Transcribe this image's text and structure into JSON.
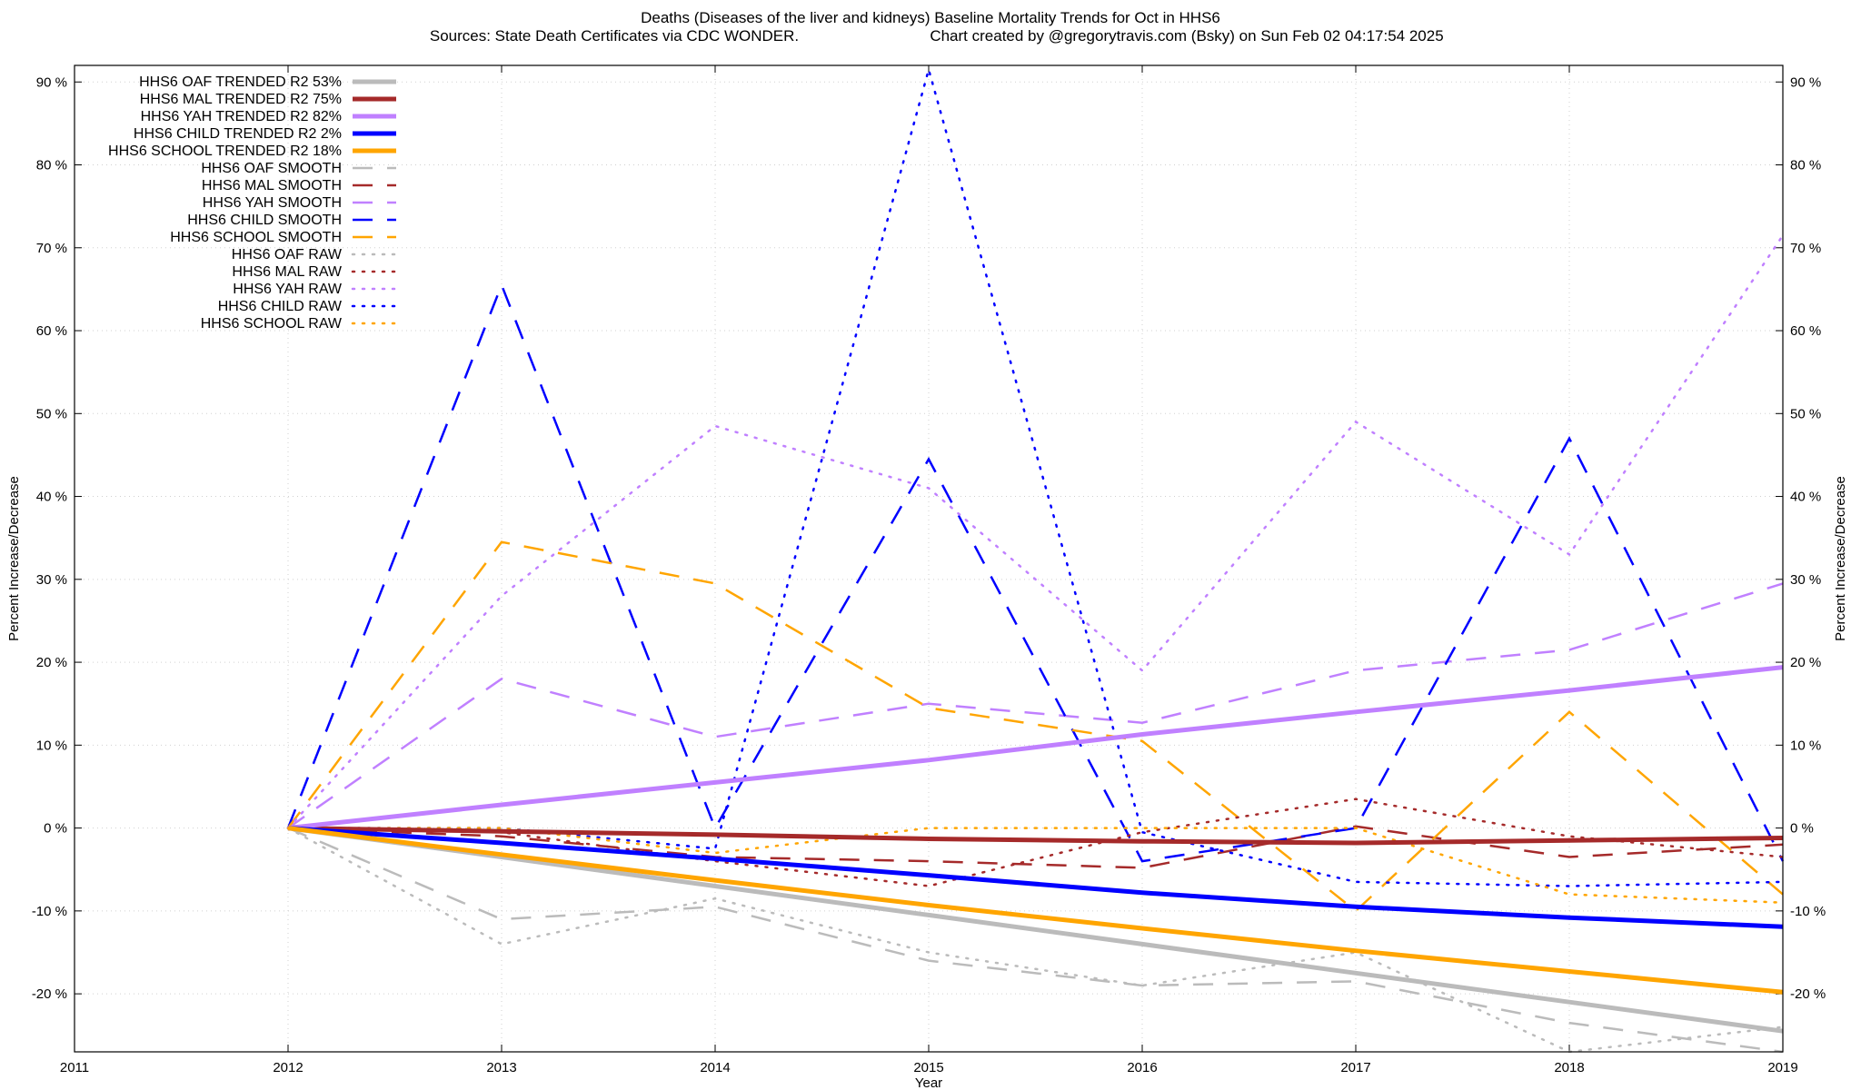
{
  "chart_data": {
    "type": "line",
    "title": "Deaths (Diseases of the liver and kidneys)  Baseline Mortality Trends for Oct in HHS6",
    "subtitle_left": "Sources: State Death Certificates via CDC WONDER.",
    "subtitle_right": "Chart created by @gregorytravis.com (Bsky) on Sun Feb 02 04:17:54 2025",
    "xlabel": "Year",
    "ylabel_left": "Percent Increase/Decrease",
    "ylabel_right": "Percent Increase/Decrease",
    "xlim": [
      2011,
      2019
    ],
    "ylim": [
      -27,
      92
    ],
    "x_ticks": [
      "2011",
      "2012",
      "2013",
      "2014",
      "2015",
      "2016",
      "2017",
      "2018",
      "2019"
    ],
    "y_ticks": [
      90,
      80,
      70,
      60,
      50,
      40,
      30,
      20,
      10,
      0,
      -10,
      -20
    ],
    "y_tick_labels_left": [
      "90 %",
      "80 %",
      "70 %",
      "60 %",
      "50 %",
      "40 %",
      "30 %",
      "20 %",
      "10 %",
      "0 %",
      "-10 %",
      "-20 %"
    ],
    "y_tick_labels_right": [
      "90 %",
      "80 %",
      "70 %",
      "60 %",
      "50 %",
      "40 %",
      "30 %",
      "20 %",
      "10 %",
      "0 %",
      "-10 %",
      "-20 %"
    ],
    "grid": true,
    "legend_position": "top-left",
    "x": [
      2012,
      2013,
      2014,
      2015,
      2016,
      2017,
      2018,
      2019
    ],
    "series": [
      {
        "name": "HHS6 OAF TRENDED R2  53%",
        "style": "trend",
        "color": "#bbbbbb",
        "values": [
          0,
          -3.5,
          -7,
          -10.5,
          -14,
          -17.5,
          -21,
          -24.5
        ]
      },
      {
        "name": "HHS6 MAL TRENDED R2  75%",
        "style": "trend",
        "color": "#a52a2a",
        "values": [
          0,
          -0.4,
          -0.8,
          -1.3,
          -1.6,
          -1.8,
          -1.5,
          -1.2
        ]
      },
      {
        "name": "HHS6 YAH TRENDED R2  82%",
        "style": "trend",
        "color": "#c080ff",
        "values": [
          0,
          2.8,
          5.5,
          8.2,
          11.3,
          14,
          16.6,
          19.4
        ]
      },
      {
        "name": "HHS6 CHILD TRENDED R2   2%",
        "style": "trend",
        "color": "#0000ff",
        "values": [
          0,
          -1.8,
          -3.7,
          -5.7,
          -7.8,
          -9.5,
          -10.8,
          -11.9
        ]
      },
      {
        "name": "HHS6 SCHOOL TRENDED R2  18%",
        "style": "trend",
        "color": "#ffa500",
        "values": [
          0,
          -3.2,
          -6.3,
          -9.3,
          -12.1,
          -14.8,
          -17.3,
          -19.8
        ]
      },
      {
        "name": "HHS6 OAF SMOOTH",
        "style": "smooth",
        "color": "#bbbbbb",
        "values": [
          0,
          -11,
          -9.5,
          -16,
          -19,
          -18.5,
          -23.5,
          -27
        ]
      },
      {
        "name": "HHS6 MAL SMOOTH",
        "style": "smooth",
        "color": "#a52a2a",
        "values": [
          0,
          -1,
          -3.5,
          -4,
          -4.8,
          0.2,
          -3.5,
          -2
        ]
      },
      {
        "name": "HHS6 YAH SMOOTH",
        "style": "smooth",
        "color": "#c080ff",
        "values": [
          0,
          18,
          11,
          15,
          12.7,
          19,
          21.5,
          29.5
        ]
      },
      {
        "name": "HHS6 CHILD SMOOTH",
        "style": "smooth",
        "color": "#0000ff",
        "values": [
          0,
          65.5,
          0,
          44.5,
          -4,
          0,
          47,
          -4
        ]
      },
      {
        "name": "HHS6 SCHOOL SMOOTH",
        "style": "smooth",
        "color": "#ffa500",
        "values": [
          0,
          34.5,
          29.5,
          14.5,
          10.5,
          -10,
          14,
          -8
        ]
      },
      {
        "name": "HHS6 OAF RAW",
        "style": "raw",
        "color": "#bbbbbb",
        "values": [
          0,
          -14,
          -8.5,
          -15,
          -19,
          -15,
          -27,
          -24
        ]
      },
      {
        "name": "HHS6 MAL RAW",
        "style": "raw",
        "color": "#a52a2a",
        "values": [
          0,
          -0.5,
          -4,
          -7,
          -0.5,
          3.5,
          -1,
          -3.5
        ]
      },
      {
        "name": "HHS6 YAH RAW",
        "style": "raw",
        "color": "#c080ff",
        "values": [
          0,
          28,
          48.5,
          41,
          19,
          49,
          33,
          71.5
        ]
      },
      {
        "name": "HHS6 CHILD RAW",
        "style": "raw",
        "color": "#0000ff",
        "values": [
          0,
          0,
          -2.5,
          91.5,
          -0.5,
          -6.5,
          -7,
          -6.5
        ]
      },
      {
        "name": "HHS6 SCHOOL RAW",
        "style": "raw",
        "color": "#ffa500",
        "values": [
          0,
          0,
          -3,
          0,
          0,
          0,
          -8,
          -9
        ]
      }
    ]
  }
}
